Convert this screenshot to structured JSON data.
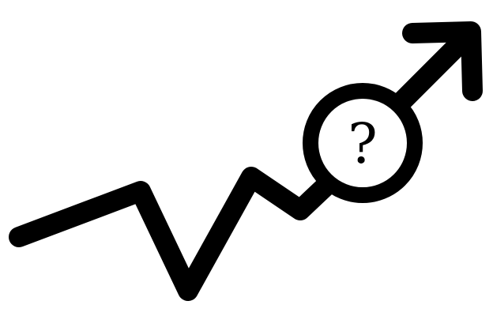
{
  "icon": {
    "name": "uncertain-growth-icon",
    "symbol": "?",
    "stroke_color": "#000000",
    "fill_color": "#ffffff",
    "background": "#ffffff"
  }
}
